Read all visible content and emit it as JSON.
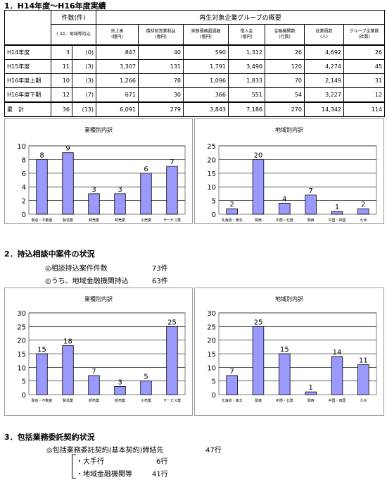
{
  "sections": {
    "s1": "1．H14年度～H16年度実績",
    "s2": "2．持込相談中案件の状況",
    "s3": "3．包括業務委託契約状況"
  },
  "table": {
    "h_count": "件数(件)",
    "h_count_sub": "( )は、地域等持込",
    "h_overview": "再生対象企業グループの概要",
    "sub_headers": [
      [
        "売上高",
        "(億円)"
      ],
      [
        "償却前営業利益",
        "(億円)"
      ],
      [
        "実態債務超過額",
        "(億円)"
      ],
      [
        "借入金",
        "(億円)"
      ],
      [
        "金融機関数",
        "(行数)"
      ],
      [
        "従業員数",
        "(人)"
      ],
      [
        "グループ企業数",
        "(社数)"
      ]
    ],
    "rows": [
      {
        "label": "H14年度",
        "count": "3",
        "local": "(0)",
        "cells": [
          "847",
          "40",
          "590",
          "1,312",
          "26",
          "4,692",
          "26"
        ]
      },
      {
        "label": "H15年度",
        "count": "11",
        "local": "(3)",
        "cells": [
          "3,307",
          "131",
          "1,791",
          "3,490",
          "120",
          "4,274",
          "45"
        ]
      },
      {
        "label": "H16年度上期",
        "count": "10",
        "local": "(3)",
        "cells": [
          "1,266",
          "78",
          "1,096",
          "1,833",
          "70",
          "2,149",
          "31"
        ]
      },
      {
        "label": "H16年度下期",
        "count": "12",
        "local": "(7)",
        "cells": [
          "671",
          "30",
          "366",
          "551",
          "54",
          "3,227",
          "12"
        ]
      }
    ],
    "total": {
      "label": "累　計",
      "count": "36",
      "local": "(13)",
      "cells": [
        "6,091",
        "279",
        "3,843",
        "7,186",
        "270",
        "14,342",
        "114"
      ]
    }
  },
  "section2": {
    "line1_label": "◎相談持込案件件数",
    "line1_value": "73件",
    "line2_label": "◎うち、地域金融機関持込",
    "line2_value": "63件"
  },
  "section3": {
    "line1_label": "◎包括業務委託契約(基本契約)締結先",
    "line1_value": "47行",
    "sub1_label": "・大手行",
    "sub1_value": "6行",
    "sub2_label": "・地域金融機関等",
    "sub2_value": "41行"
  },
  "chart_data": [
    {
      "type": "bar",
      "title": "業種別内訳",
      "categories": [
        "製造・不動産",
        "製造業",
        "卸売業",
        "卸売業",
        "小売業",
        "サービス業"
      ],
      "values": [
        8,
        9,
        3,
        3,
        6,
        7
      ],
      "ylim": [
        0,
        10
      ],
      "yticks": [
        0,
        2,
        4,
        6,
        8,
        10
      ],
      "bar_color": "#9999ff",
      "grid": true
    },
    {
      "type": "bar",
      "title": "地域別内訳",
      "categories": [
        "北海道・東北",
        "関東",
        "中部・北陸",
        "関西",
        "中国・四国",
        "九州"
      ],
      "values": [
        2,
        20,
        4,
        7,
        1,
        2
      ],
      "ylim": [
        0,
        25
      ],
      "yticks": [
        0,
        5,
        10,
        15,
        20,
        25
      ],
      "bar_color": "#9999ff",
      "grid": true
    },
    {
      "type": "bar",
      "title": "業種別内訳",
      "categories": [
        "製造・不動産",
        "製造業",
        "卸売業",
        "卸売業",
        "小売業",
        "サービス業"
      ],
      "values": [
        15,
        18,
        7,
        3,
        5,
        25
      ],
      "ylim": [
        0,
        30
      ],
      "yticks": [
        0,
        5,
        10,
        15,
        20,
        25,
        30
      ],
      "bar_color": "#9999ff",
      "grid": true
    },
    {
      "type": "bar",
      "title": "地域別内訳",
      "categories": [
        "北海道・東北",
        "関東",
        "中部・北陸",
        "関西",
        "中国・四国",
        "九州"
      ],
      "values": [
        7,
        25,
        15,
        1,
        14,
        11
      ],
      "ylim": [
        0,
        30
      ],
      "yticks": [
        0,
        5,
        10,
        15,
        20,
        25,
        30
      ],
      "bar_color": "#9999ff",
      "grid": true
    }
  ]
}
